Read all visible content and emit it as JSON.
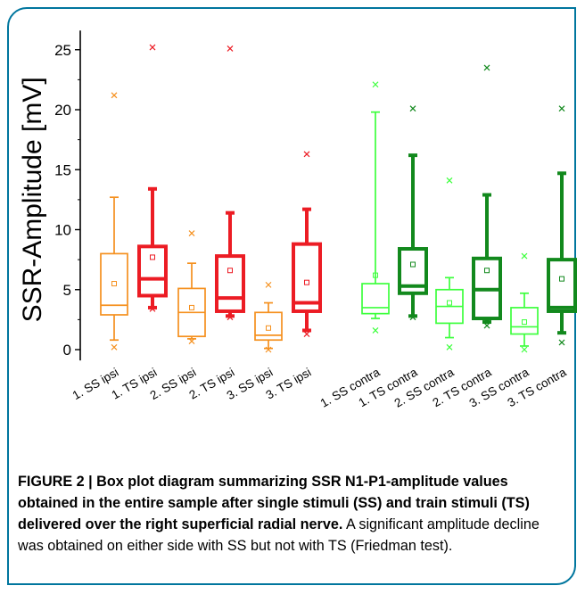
{
  "chart_data": {
    "type": "box",
    "ylabel": "SSR-Amplitude [mV]",
    "ylim": [
      -1,
      27
    ],
    "yticks": [
      0,
      5,
      10,
      15,
      20,
      25
    ],
    "colors": {
      "orange": "#f5901e",
      "red": "#ec1c24",
      "lightgreen": "#3dff3d",
      "darkgreen": "#12891d"
    },
    "series": [
      {
        "name": "1. SS ipsi",
        "color": "orange",
        "bold": false,
        "q1": 2.9,
        "median": 3.7,
        "q3": 8.0,
        "whisker_low": 0.8,
        "whisker_high": 12.7,
        "mean": 5.5,
        "min": 0.2,
        "max": 21.2
      },
      {
        "name": "1. TS ipsi",
        "color": "red",
        "bold": true,
        "q1": 4.5,
        "median": 5.9,
        "q3": 8.6,
        "whisker_low": 3.5,
        "whisker_high": 13.4,
        "mean": 7.7,
        "min": 3.4,
        "max": 25.2
      },
      {
        "name": "2. SS ipsi",
        "color": "orange",
        "bold": false,
        "q1": 1.1,
        "median": 3.1,
        "q3": 5.1,
        "whisker_low": 0.9,
        "whisker_high": 7.2,
        "mean": 3.5,
        "min": 0.7,
        "max": 9.7
      },
      {
        "name": "2. TS ipsi",
        "color": "red",
        "bold": true,
        "q1": 3.2,
        "median": 4.3,
        "q3": 7.8,
        "whisker_low": 2.8,
        "whisker_high": 11.4,
        "mean": 6.6,
        "min": 2.7,
        "max": 25.1
      },
      {
        "name": "3. SS ipsi",
        "color": "orange",
        "bold": false,
        "q1": 0.8,
        "median": 1.2,
        "q3": 3.1,
        "whisker_low": 0.1,
        "whisker_high": 3.9,
        "mean": 1.8,
        "min": 0.0,
        "max": 5.4
      },
      {
        "name": "3. TS ipsi",
        "color": "red",
        "bold": true,
        "q1": 3.2,
        "median": 3.9,
        "q3": 8.8,
        "whisker_low": 1.6,
        "whisker_high": 11.7,
        "mean": 5.6,
        "min": 1.3,
        "max": 16.3
      },
      {
        "name": "1. SS contra",
        "color": "lightgreen",
        "bold": false,
        "q1": 3.0,
        "median": 3.5,
        "q3": 5.5,
        "whisker_low": 2.6,
        "whisker_high": 19.8,
        "mean": 6.2,
        "min": 1.6,
        "max": 22.1
      },
      {
        "name": "1. TS contra",
        "color": "darkgreen",
        "bold": true,
        "q1": 4.7,
        "median": 5.3,
        "q3": 8.4,
        "whisker_low": 2.8,
        "whisker_high": 16.2,
        "mean": 7.1,
        "min": 2.7,
        "max": 20.1
      },
      {
        "name": "2. SS contra",
        "color": "lightgreen",
        "bold": false,
        "q1": 2.2,
        "median": 3.6,
        "q3": 5.0,
        "whisker_low": 1.0,
        "whisker_high": 6.0,
        "mean": 3.9,
        "min": 0.2,
        "max": 14.1
      },
      {
        "name": "2. TS contra",
        "color": "darkgreen",
        "bold": true,
        "q1": 2.6,
        "median": 5.0,
        "q3": 7.6,
        "whisker_low": 2.3,
        "whisker_high": 12.9,
        "mean": 6.6,
        "min": 2.0,
        "max": 23.5
      },
      {
        "name": "3. SS contra",
        "color": "lightgreen",
        "bold": false,
        "q1": 1.3,
        "median": 1.9,
        "q3": 3.5,
        "whisker_low": 0.3,
        "whisker_high": 4.7,
        "mean": 2.3,
        "min": 0.0,
        "max": 7.8
      },
      {
        "name": "3. TS contra",
        "color": "darkgreen",
        "bold": true,
        "q1": 3.2,
        "median": 3.5,
        "q3": 7.5,
        "whisker_low": 1.4,
        "whisker_high": 14.7,
        "mean": 5.9,
        "min": 0.6,
        "max": 20.1
      }
    ]
  },
  "caption": {
    "bold_text": "FIGURE 2 | Box plot diagram summarizing SSR N1-P1-amplitude values obtained in the entire sample after single stimuli (SS) and train stimuli (TS) delivered over the right superficial radial nerve.",
    "normal_text": " A significant amplitude decline was obtained on either side with SS but not with TS (Friedman test)."
  }
}
